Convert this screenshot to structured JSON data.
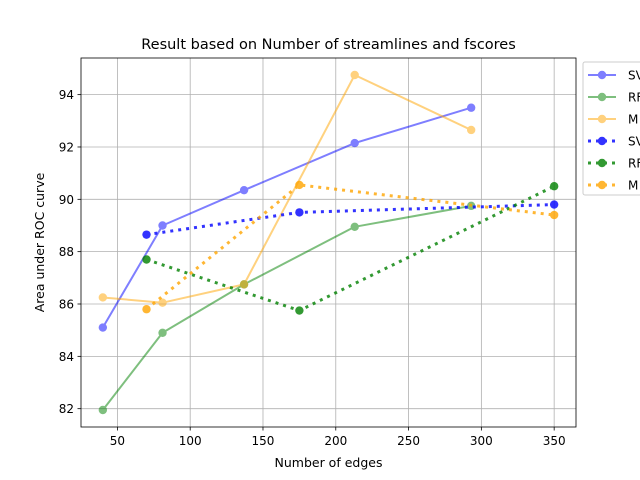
{
  "chart_data": {
    "type": "line",
    "title": "Result based on Number of streamlines and fscores",
    "xlabel": "Number of edges",
    "ylabel": "Area under ROC curve",
    "xlim": [
      25,
      365
    ],
    "ylim": [
      81.3,
      95.4
    ],
    "xticks": [
      50,
      100,
      150,
      200,
      250,
      300,
      350
    ],
    "yticks": [
      82,
      84,
      86,
      88,
      90,
      92,
      94
    ],
    "grid": true,
    "legend": "outside-right",
    "series": [
      {
        "name": "SV",
        "color": "#0000ff",
        "style": "solid",
        "opacity": 0.5,
        "x": [
          40,
          81,
          137,
          213,
          293
        ],
        "y": [
          85.1,
          89.0,
          90.35,
          92.15,
          93.5
        ]
      },
      {
        "name": "RF",
        "color": "#008000",
        "style": "solid",
        "opacity": 0.5,
        "x": [
          40,
          81,
          137,
          213,
          293
        ],
        "y": [
          81.95,
          84.9,
          86.75,
          88.95,
          89.75
        ]
      },
      {
        "name": "M",
        "color": "#ffa500",
        "style": "solid",
        "opacity": 0.5,
        "x": [
          40,
          81,
          137,
          213,
          293
        ],
        "y": [
          86.25,
          86.05,
          86.75,
          94.75,
          92.65
        ]
      },
      {
        "name": "SV",
        "color": "#0000ff",
        "style": "dotted",
        "opacity": 0.8,
        "x": [
          70,
          175,
          350
        ],
        "y": [
          88.65,
          89.5,
          89.8
        ]
      },
      {
        "name": "RF",
        "color": "#008000",
        "style": "dotted",
        "opacity": 0.8,
        "x": [
          70,
          175,
          350
        ],
        "y": [
          87.7,
          85.75,
          90.5
        ]
      },
      {
        "name": "M",
        "color": "#ffa500",
        "style": "dotted",
        "opacity": 0.8,
        "x": [
          70,
          175,
          350
        ],
        "y": [
          85.8,
          90.55,
          89.4
        ]
      }
    ]
  }
}
